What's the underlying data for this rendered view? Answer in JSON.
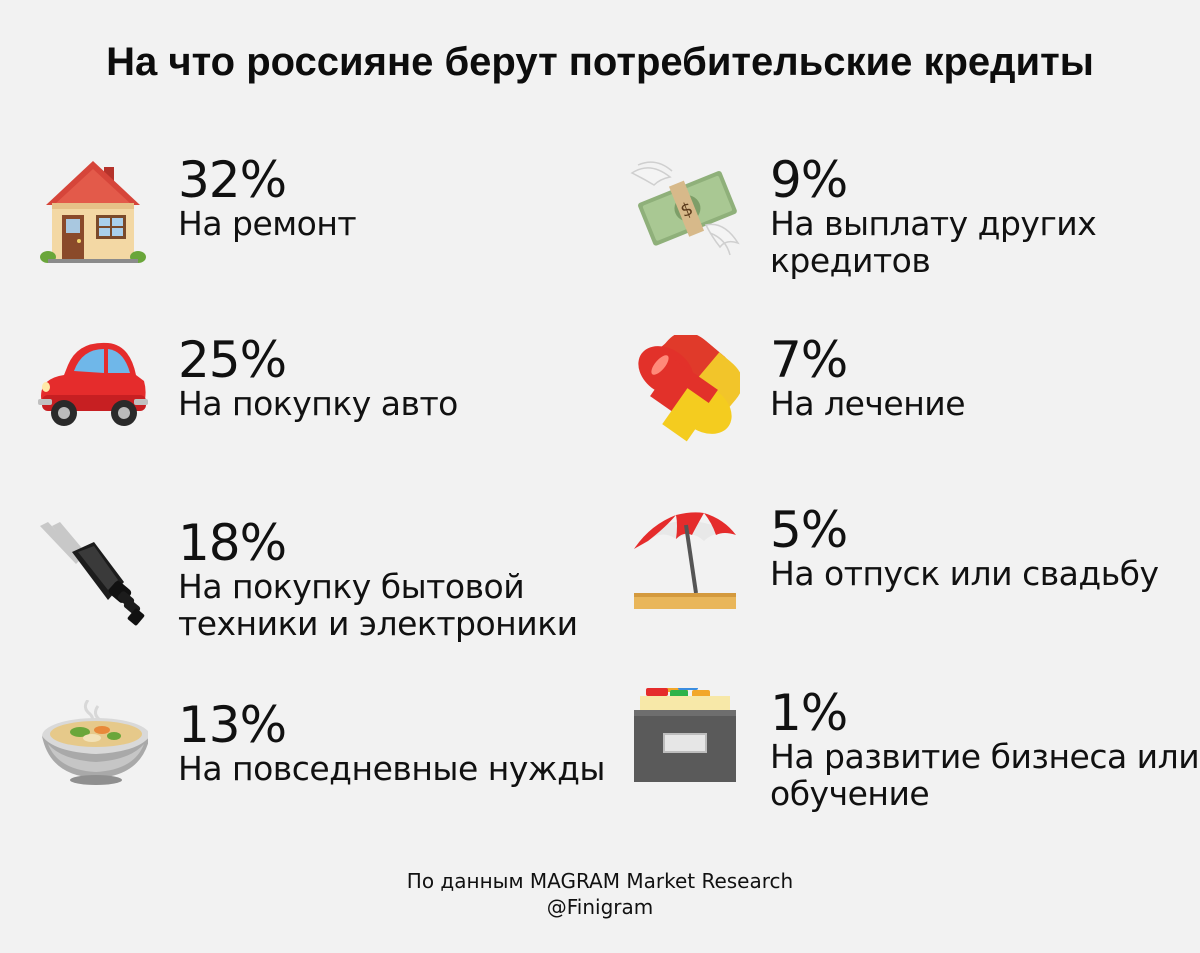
{
  "title": "На что россияне берут потребительские кредиты",
  "items": [
    {
      "percent": "32%",
      "label": "На ремонт",
      "icon": "house-icon"
    },
    {
      "percent": "25%",
      "label": "На покупку авто",
      "icon": "car-icon"
    },
    {
      "percent": "18%",
      "label": "На покупку бытовой техники и электроники",
      "icon": "plug-icon"
    },
    {
      "percent": "13%",
      "label": "На повседневные нужды",
      "icon": "soup-bowl-icon"
    },
    {
      "percent": "9%",
      "label": "На выплату других кредитов",
      "icon": "money-with-wings-icon"
    },
    {
      "percent": "7%",
      "label": "На лечение",
      "icon": "pill-icon"
    },
    {
      "percent": "5%",
      "label": "На отпуск или свадьбу",
      "icon": "beach-umbrella-icon"
    },
    {
      "percent": "1%",
      "label": "На развитие бизнеса или обучение",
      "icon": "card-file-box-icon"
    }
  ],
  "source": {
    "line1": "По данным MAGRAM Market Research",
    "line2": "@Finigram"
  }
}
